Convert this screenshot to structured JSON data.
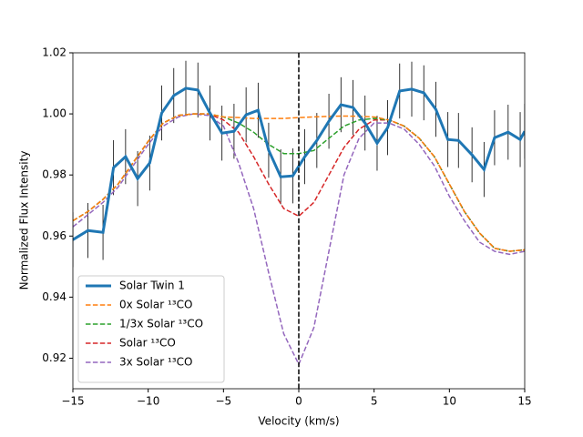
{
  "chart_data": {
    "type": "line",
    "xlabel": "Velocity (km/s)",
    "ylabel": "Normalized Flux Intensity",
    "xlim": [
      -15,
      15
    ],
    "ylim": [
      0.91,
      1.02
    ],
    "xticks": [
      {
        "value": -15,
        "label": "−15"
      },
      {
        "value": -10,
        "label": "−10"
      },
      {
        "value": -5,
        "label": "−5"
      },
      0,
      5,
      10,
      15
    ],
    "yticks": [
      0.92,
      0.94,
      0.96,
      0.98,
      {
        "value": 1.0,
        "label": "1.00"
      },
      1.02
    ],
    "vline": 0,
    "legend": "lower left",
    "series": [
      {
        "name": "Solar Twin 1",
        "color": "#1f77b4",
        "style": "solid",
        "x": [
          -15,
          -14,
          -13,
          -12.3,
          -11.5,
          -10.7,
          -9.9,
          -9.1,
          -8.3,
          -7.5,
          -6.7,
          -5.9,
          -5.1,
          -4.3,
          -3.5,
          -2.7,
          -2,
          -1.2,
          -0.4,
          0.4,
          1.2,
          2,
          2.8,
          3.6,
          4.4,
          5.2,
          5.9,
          6.7,
          7.5,
          8.3,
          9.1,
          9.9,
          10.6,
          11.5,
          12.3,
          13,
          13.9,
          14.7,
          15
        ],
        "values": [
          0.9588,
          0.9618,
          0.9612,
          0.9824,
          0.986,
          0.9788,
          0.9839,
          1.0003,
          1.006,
          1.0084,
          1.0078,
          1.0003,
          0.9937,
          0.9943,
          0.9997,
          1.0012,
          0.9881,
          0.9794,
          0.9797,
          0.986,
          0.9913,
          0.9976,
          1.003,
          1.0021,
          0.997,
          0.9904,
          0.9955,
          1.0075,
          1.0081,
          1.0069,
          1.0015,
          0.9916,
          0.9913,
          0.9866,
          0.9818,
          0.9922,
          0.994,
          0.9916,
          0.9943
        ],
        "errors": [
          0.009,
          0.009,
          0.009,
          0.009,
          0.009,
          0.009,
          0.009,
          0.009,
          0.009,
          0.009,
          0.009,
          0.009,
          0.009,
          0.009,
          0.009,
          0.009,
          0.009,
          0.009,
          0.009,
          0.009,
          0.009,
          0.009,
          0.009,
          0.009,
          0.009,
          0.009,
          0.009,
          0.009,
          0.009,
          0.009,
          0.009,
          0.009,
          0.009,
          0.009,
          0.009,
          0.009,
          0.009,
          0.009,
          0.009
        ]
      },
      {
        "name": "0x Solar ¹³CO",
        "color": "#ff7f0e",
        "style": "dashed",
        "x": [
          -15,
          -14,
          -13,
          -12,
          -11,
          -10,
          -9,
          -8,
          -7,
          -6,
          -5,
          -4,
          -3,
          -2,
          -1,
          0,
          1,
          2,
          3,
          4,
          5,
          6,
          7,
          8,
          9,
          10,
          11,
          12,
          13,
          14,
          15
        ],
        "values": [
          0.965,
          0.968,
          0.972,
          0.977,
          0.984,
          0.991,
          0.997,
          0.9995,
          1.0,
          1.0,
          0.999,
          0.9988,
          0.9985,
          0.9985,
          0.9985,
          0.9988,
          0.999,
          0.9992,
          0.9993,
          0.9992,
          0.999,
          0.998,
          0.996,
          0.992,
          0.986,
          0.977,
          0.968,
          0.961,
          0.956,
          0.955,
          0.9555
        ]
      },
      {
        "name": "1/3x Solar ¹³CO",
        "color": "#2ca02c",
        "style": "dashed",
        "x": [
          -15,
          -14,
          -13,
          -12,
          -11,
          -10,
          -9,
          -8,
          -7,
          -6,
          -5,
          -4,
          -3,
          -2,
          -1,
          0,
          1,
          2,
          3,
          4,
          5,
          6,
          7,
          8,
          9,
          10,
          11,
          12,
          13,
          14,
          15
        ],
        "values": [
          0.965,
          0.968,
          0.972,
          0.977,
          0.984,
          0.991,
          0.997,
          0.9995,
          1.0,
          1.0,
          0.999,
          0.997,
          0.994,
          0.99,
          0.987,
          0.987,
          0.988,
          0.992,
          0.996,
          0.998,
          0.9985,
          0.998,
          0.996,
          0.992,
          0.986,
          0.977,
          0.968,
          0.961,
          0.956,
          0.955,
          0.9555
        ]
      },
      {
        "name": "Solar ¹³CO",
        "color": "#d62728",
        "style": "dashed",
        "x": [
          -15,
          -14,
          -13,
          -12,
          -11,
          -10,
          -9,
          -8,
          -7,
          -6,
          -5,
          -4,
          -3,
          -2,
          -1,
          0,
          1,
          2,
          3,
          4,
          5,
          6,
          7,
          8,
          9,
          10,
          11,
          12,
          13,
          14,
          15
        ],
        "values": [
          0.965,
          0.968,
          0.972,
          0.977,
          0.984,
          0.991,
          0.997,
          0.9995,
          1.0,
          1.0,
          0.998,
          0.994,
          0.986,
          0.977,
          0.969,
          0.9665,
          0.971,
          0.98,
          0.989,
          0.995,
          0.998,
          0.998,
          0.996,
          0.992,
          0.986,
          0.977,
          0.968,
          0.961,
          0.956,
          0.955,
          0.9555
        ]
      },
      {
        "name": "3x Solar ¹³CO",
        "color": "#9467bd",
        "style": "dashed",
        "x": [
          -15,
          -14,
          -13,
          -12,
          -11,
          -10,
          -9,
          -8,
          -7,
          -6,
          -5,
          -4,
          -3,
          -2,
          -1,
          0,
          1,
          2,
          3,
          4,
          5,
          6,
          7,
          8,
          9,
          10,
          11,
          12,
          13,
          14,
          15
        ],
        "values": [
          0.963,
          0.967,
          0.971,
          0.976,
          0.983,
          0.99,
          0.996,
          0.999,
          1.0,
          0.9995,
          0.996,
          0.984,
          0.969,
          0.948,
          0.928,
          0.918,
          0.93,
          0.955,
          0.98,
          0.992,
          0.997,
          0.997,
          0.995,
          0.99,
          0.983,
          0.973,
          0.965,
          0.958,
          0.955,
          0.954,
          0.955
        ]
      }
    ]
  }
}
